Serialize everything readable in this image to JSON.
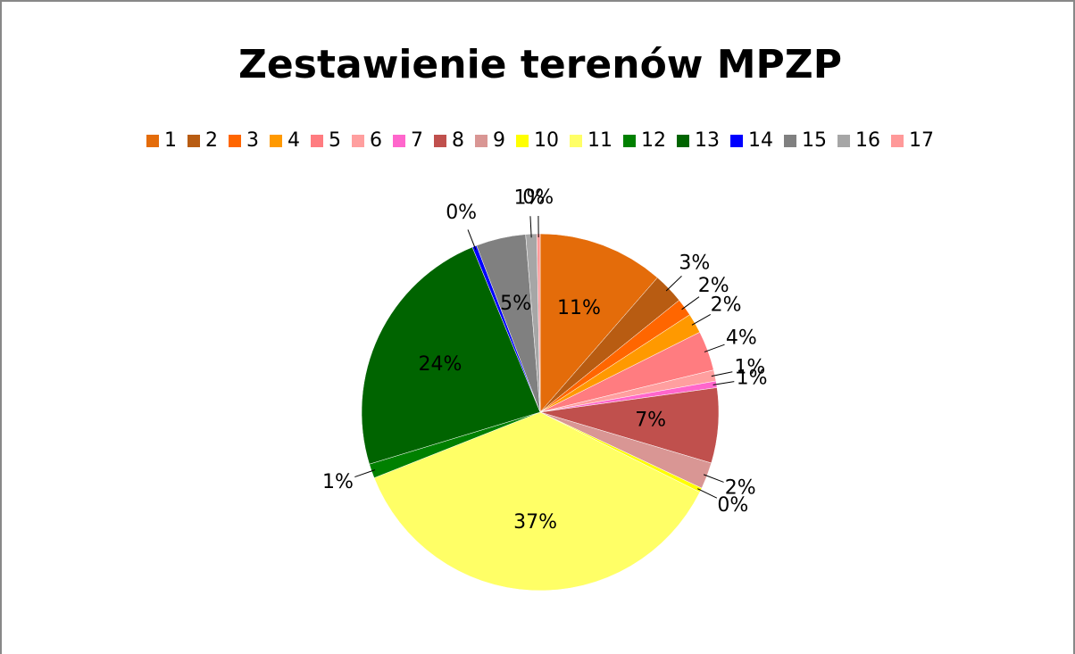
{
  "chart_data": {
    "type": "pie",
    "title": "Zestawienie terenów MPZP",
    "categories": [
      "1",
      "2",
      "3",
      "4",
      "5",
      "6",
      "7",
      "8",
      "9",
      "10",
      "11",
      "12",
      "13",
      "14",
      "15",
      "16",
      "17"
    ],
    "values": [
      11.4,
      2.8,
      1.6,
      1.8,
      3.6,
      1.0,
      0.6,
      6.8,
      2.4,
      0.4,
      36.6,
      1.3,
      23.5,
      0.4,
      4.5,
      1.0,
      0.3
    ],
    "value_labels": [
      "11%",
      "3%",
      "2%",
      "2%",
      "4%",
      "1%",
      "1%",
      "7%",
      "2%",
      "0%",
      "37%",
      "1%",
      "24%",
      "0%",
      "5%",
      "1%",
      "0%"
    ],
    "colors": [
      "#e46c0a",
      "#b85c12",
      "#ff6600",
      "#ff9900",
      "#ff7c80",
      "#ff9f9f",
      "#ff66cc",
      "#c0504d",
      "#d99694",
      "#ffff00",
      "#ffff66",
      "#008000",
      "#006400",
      "#0000ff",
      "#808080",
      "#a6a6a6",
      "#ff9999"
    ],
    "legend": "top"
  }
}
